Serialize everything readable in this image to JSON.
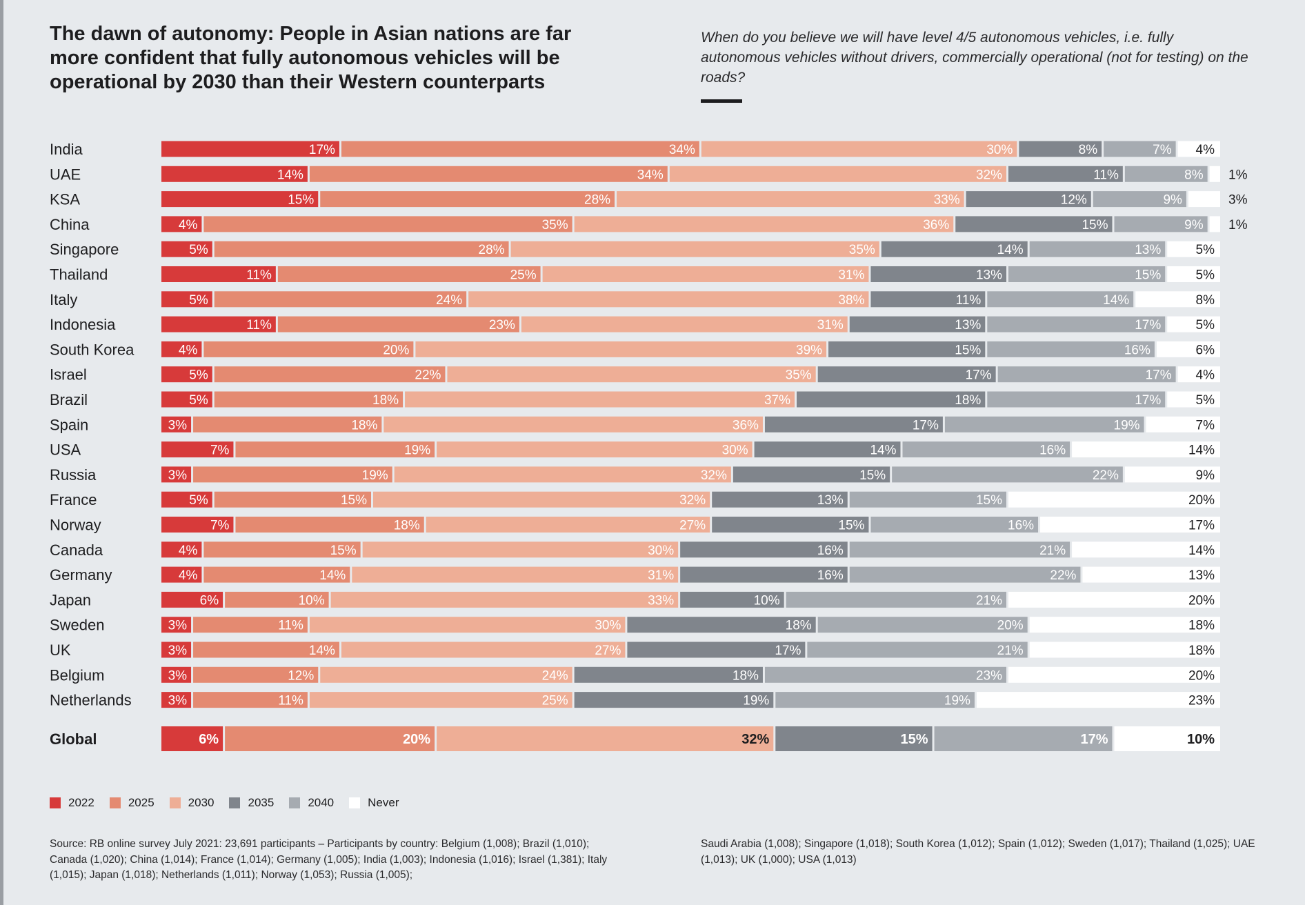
{
  "header": {
    "title": "The dawn of autonomy: People in Asian nations are far more confident that fully autonomous vehicles will be operational by 2030 than their Western counterparts",
    "question": "When do you believe we will have level 4/5 autonomous vehicles, i.e. fully autonomous vehicles without drivers, commercially operational (not for testing) on the roads?"
  },
  "chart_data": {
    "type": "bar",
    "orientation": "horizontal",
    "stacked": true,
    "total": 100,
    "categories": [
      "India",
      "UAE",
      "KSA",
      "China",
      "Singapore",
      "Thailand",
      "Italy",
      "Indonesia",
      "South Korea",
      "Israel",
      "Brazil",
      "Spain",
      "USA",
      "Russia",
      "France",
      "Norway",
      "Canada",
      "Germany",
      "Japan",
      "Sweden",
      "UK",
      "Belgium",
      "Netherlands",
      "Global"
    ],
    "series": [
      {
        "name": "2022",
        "color": "#d73a3a",
        "values": [
          17,
          14,
          15,
          4,
          5,
          11,
          5,
          11,
          4,
          5,
          5,
          3,
          7,
          3,
          5,
          7,
          4,
          4,
          6,
          3,
          3,
          3,
          3,
          6
        ]
      },
      {
        "name": "2025",
        "color": "#e48a71",
        "values": [
          34,
          34,
          28,
          35,
          28,
          25,
          24,
          23,
          20,
          22,
          18,
          18,
          19,
          19,
          15,
          18,
          15,
          14,
          10,
          11,
          14,
          12,
          11,
          20
        ]
      },
      {
        "name": "2030",
        "color": "#eeae96",
        "values": [
          30,
          32,
          33,
          36,
          35,
          31,
          38,
          31,
          39,
          35,
          37,
          36,
          30,
          32,
          32,
          27,
          30,
          31,
          33,
          30,
          27,
          24,
          25,
          32
        ]
      },
      {
        "name": "2035",
        "color": "#80858c",
        "values": [
          8,
          11,
          12,
          15,
          14,
          13,
          11,
          13,
          15,
          17,
          18,
          17,
          14,
          15,
          13,
          15,
          16,
          16,
          10,
          18,
          17,
          18,
          19,
          15
        ]
      },
      {
        "name": "2040",
        "color": "#a6abb1",
        "values": [
          7,
          8,
          9,
          9,
          13,
          15,
          14,
          17,
          16,
          17,
          17,
          19,
          16,
          22,
          15,
          16,
          21,
          22,
          21,
          20,
          21,
          23,
          19,
          17
        ]
      },
      {
        "name": "Never",
        "color": "#ffffff",
        "values": [
          4,
          1,
          3,
          1,
          5,
          5,
          8,
          5,
          6,
          4,
          5,
          7,
          14,
          9,
          20,
          17,
          14,
          13,
          20,
          18,
          18,
          20,
          23,
          10
        ]
      }
    ]
  },
  "source": {
    "left": "Source: RB online survey July 2021: 23,691 participants  – Participants by country: Belgium (1,008); Brazil (1,010); Canada (1,020); China (1,014); France (1,014); Germany (1,005); India (1,003); Indonesia (1,016); Israel (1,381); Italy (1,015); Japan (1,018); Netherlands (1,011); Norway (1,053); Russia (1,005);",
    "right": "Saudi Arabia (1,008); Singapore (1,018); South Korea (1,012); Spain (1,012); Sweden (1,017); Thailand (1,025); UAE (1,013); UK (1,000); USA (1,013)"
  }
}
